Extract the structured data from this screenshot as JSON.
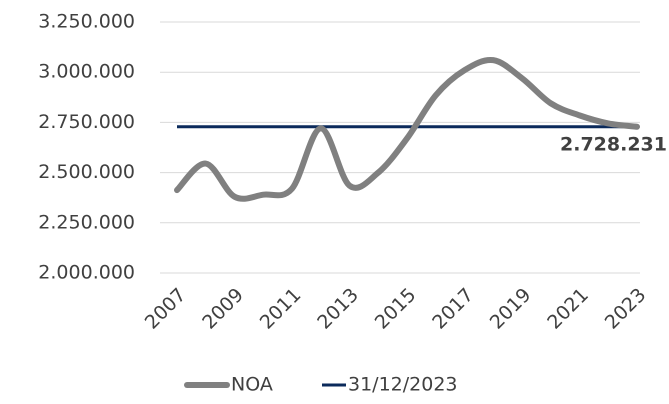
{
  "chart_data": {
    "type": "line",
    "x": [
      2007,
      2008,
      2009,
      2010,
      2011,
      2012,
      2013,
      2014,
      2015,
      2016,
      2017,
      2018,
      2019,
      2020,
      2021,
      2022,
      2023
    ],
    "series": [
      {
        "name": "NOA",
        "color": "#808080",
        "values": [
          2413000,
          2545000,
          2380000,
          2390000,
          2420000,
          2720000,
          2435000,
          2500000,
          2670000,
          2885000,
          3010000,
          3060000,
          2970000,
          2845000,
          2785000,
          2745000,
          2728231
        ]
      }
    ],
    "reference_line": {
      "name": "31/12/2023",
      "value": 2728231,
      "value_label": "2.728.231",
      "color": "#0b2a5b"
    },
    "xlim": [
      2007,
      2023
    ],
    "xticks": [
      2007,
      2009,
      2011,
      2013,
      2015,
      2017,
      2019,
      2021,
      2023
    ],
    "ylim": [
      2000000,
      3250000
    ],
    "yticks": [
      {
        "value": 2000000,
        "label": "2.000.000"
      },
      {
        "value": 2250000,
        "label": "2.250.000"
      },
      {
        "value": 2500000,
        "label": "2.500.000"
      },
      {
        "value": 2750000,
        "label": "2.750.000"
      },
      {
        "value": 3000000,
        "label": "3.000.000"
      },
      {
        "value": 3250000,
        "label": "3.250.000"
      }
    ],
    "grid": true
  }
}
